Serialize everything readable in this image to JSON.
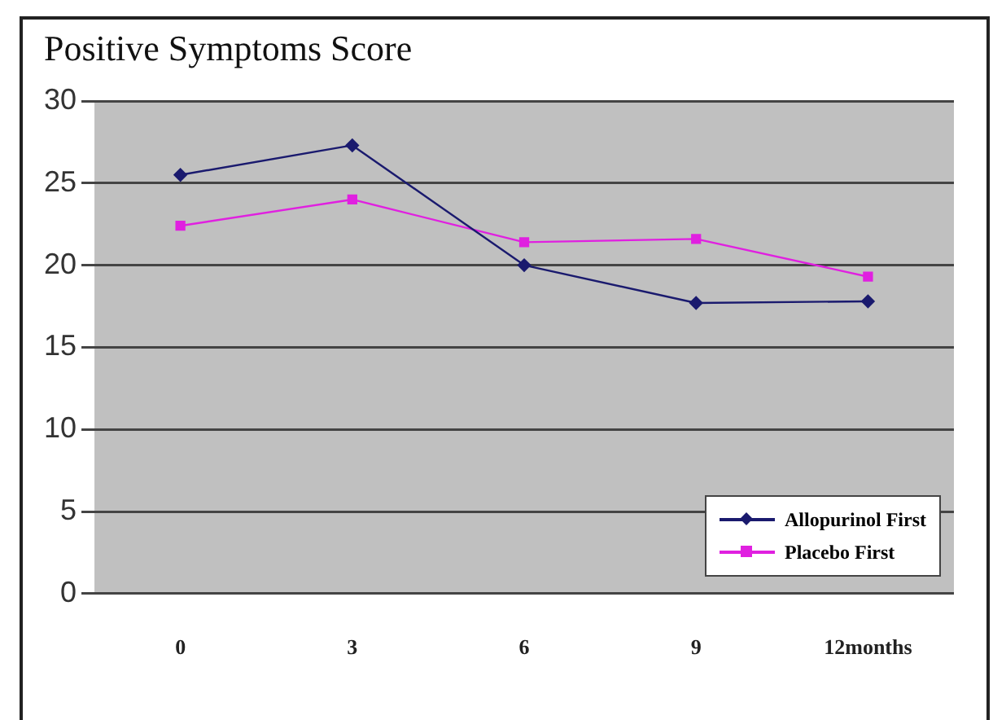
{
  "chart_data": {
    "type": "line",
    "title": "Positive Symptoms Score",
    "categories": [
      "0",
      "3",
      "6",
      "9",
      "12months"
    ],
    "series": [
      {
        "name": "Allopurinol First",
        "color": "#1a1a6e",
        "marker": "diamond",
        "values": [
          25.5,
          27.3,
          20,
          17.7,
          17.8
        ]
      },
      {
        "name": "Placebo First",
        "color": "#e020e0",
        "marker": "square",
        "values": [
          22.4,
          24.0,
          21.4,
          21.6,
          19.3
        ]
      }
    ],
    "ylim": [
      0,
      30
    ],
    "yticks": [
      0,
      5,
      10,
      15,
      20,
      25,
      30
    ],
    "grid": "y",
    "legend": "bottom right"
  }
}
